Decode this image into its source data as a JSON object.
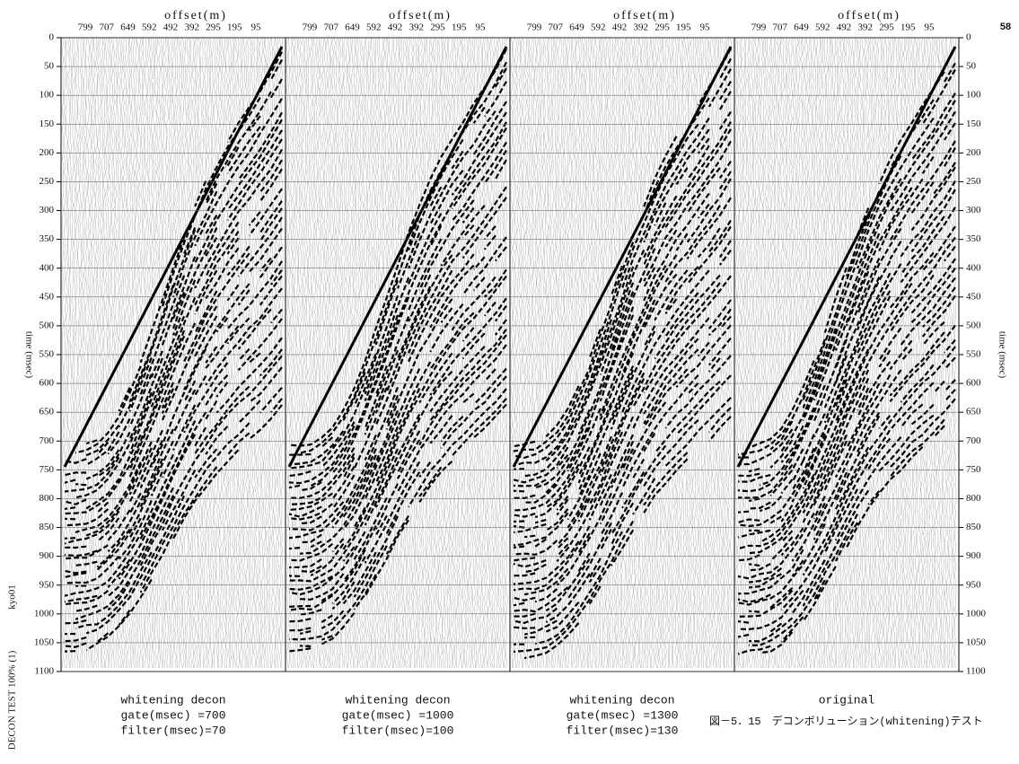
{
  "page_number": "58",
  "panels": [
    {
      "axis_title": "offset(m)",
      "offsets": [
        "799",
        "707",
        "649",
        "592",
        "492",
        "392",
        "295",
        "195",
        "95"
      ],
      "caption": [
        "whitening decon",
        "gate(msec) =700",
        "filter(msec)=70"
      ]
    },
    {
      "axis_title": "offset(m)",
      "offsets": [
        "799",
        "707",
        "649",
        "592",
        "492",
        "392",
        "295",
        "195",
        "95"
      ],
      "caption": [
        "whitening decon",
        "gate(msec) =1000",
        "filter(msec)=100"
      ]
    },
    {
      "axis_title": "offset(m)",
      "offsets": [
        "799",
        "707",
        "649",
        "592",
        "492",
        "392",
        "295",
        "195",
        "95"
      ],
      "caption": [
        "whitening decon",
        "gate(msec) =1300",
        "filter(msec)=130"
      ]
    },
    {
      "axis_title": "offset(m)",
      "offsets": [
        "799",
        "707",
        "649",
        "592",
        "492",
        "392",
        "295",
        "195",
        "95"
      ],
      "caption": [
        "original"
      ]
    }
  ],
  "time_axis": {
    "label": "time (msec)",
    "range": [
      0,
      1100
    ],
    "ticks": [
      0,
      50,
      100,
      150,
      200,
      250,
      300,
      350,
      400,
      450,
      500,
      550,
      600,
      650,
      700,
      750,
      800,
      850,
      900,
      950,
      1000,
      1050,
      1100
    ]
  },
  "side_labels": [
    "kyo01",
    "DECON TEST 100% (1)"
  ],
  "figure_caption": "図－5．15　デコンボリューション(whitening)テスト"
}
